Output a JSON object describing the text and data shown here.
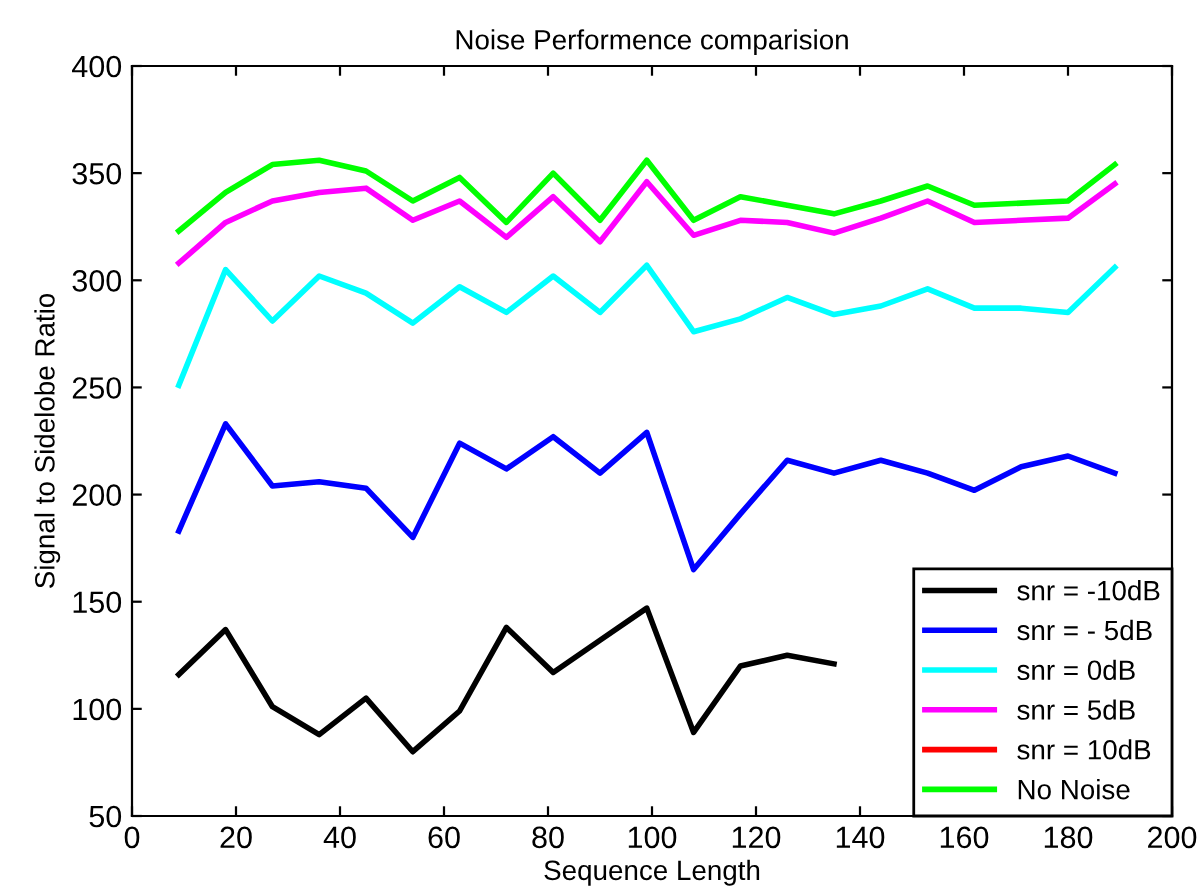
{
  "chart_data": {
    "type": "line",
    "title": "Noise Performence comparision",
    "xlabel": "Sequence Length",
    "ylabel": "Signal to Sidelobe Ratio",
    "x": [
      9,
      18,
      27,
      36,
      45,
      54,
      63,
      72,
      81,
      90,
      99,
      108,
      117,
      126,
      135,
      144,
      153,
      162,
      171,
      180,
      189
    ],
    "xlim": [
      0,
      200
    ],
    "xticks": [
      0,
      20,
      40,
      60,
      80,
      100,
      120,
      140,
      160,
      180,
      200
    ],
    "ylim": [
      50,
      400
    ],
    "yticks": [
      50,
      100,
      150,
      200,
      250,
      300,
      350,
      400
    ],
    "grid": false,
    "legend": "bottom right",
    "marker": "none",
    "line_style": "solid",
    "series": [
      {
        "name": "snr = -10dB",
        "color": "#000000",
        "values": [
          116,
          137,
          101,
          88,
          105,
          80,
          99,
          138,
          117,
          132,
          147,
          89,
          120,
          125,
          121,
          null,
          null,
          null,
          null,
          null,
          null
        ]
      },
      {
        "name": "snr = - 5dB",
        "color": "#0000ff",
        "values": [
          183,
          233,
          204,
          206,
          203,
          180,
          224,
          212,
          227,
          210,
          229,
          165,
          191,
          216,
          210,
          216,
          210,
          202,
          213,
          218,
          210
        ]
      },
      {
        "name": "snr = 0dB",
        "color": "#00ffff",
        "values": [
          251,
          305,
          281,
          302,
          294,
          280,
          297,
          285,
          302,
          285,
          307,
          276,
          282,
          292,
          284,
          288,
          296,
          287,
          287,
          285,
          306
        ]
      },
      {
        "name": "snr = 5dB",
        "color": "#ff00ff",
        "values": [
          308,
          327,
          337,
          341,
          343,
          328,
          337,
          320,
          339,
          318,
          346,
          321,
          328,
          327,
          322,
          329,
          337,
          327,
          328,
          329,
          345
        ]
      },
      {
        "name": "snr = 10dB",
        "color": "#ff0000",
        "values": [
          null,
          null,
          null,
          null,
          null,
          null,
          null,
          null,
          null,
          null,
          null,
          null,
          null,
          null,
          null,
          null,
          null,
          null,
          null,
          null,
          null
        ]
      },
      {
        "name": "No Noise",
        "color": "#00ff00",
        "values": [
          323,
          341,
          354,
          356,
          351,
          337,
          348,
          327,
          350,
          328,
          356,
          328,
          339,
          335,
          331,
          337,
          344,
          335,
          336,
          337,
          354
        ]
      }
    ]
  }
}
